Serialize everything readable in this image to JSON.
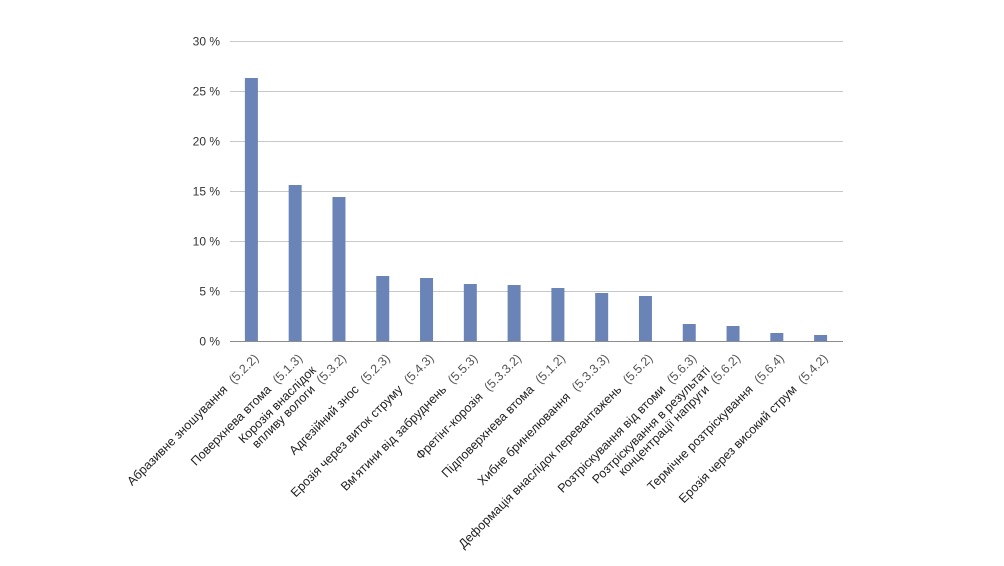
{
  "chart_data": {
    "type": "bar",
    "title": "",
    "xlabel": "",
    "ylabel": "",
    "ylim": [
      0,
      30
    ],
    "yticks": [
      0,
      5,
      10,
      15,
      20,
      25,
      30
    ],
    "ytick_labels": [
      "0 %",
      "5 %",
      "10 %",
      "15 %",
      "20 %",
      "25 %",
      "30 %"
    ],
    "grid": true,
    "bar_color": "#6b84b8",
    "categories": [
      {
        "lines": [
          "Абразивне зношування"
        ],
        "code": "(5.2.2)"
      },
      {
        "lines": [
          "Поверхнева втома"
        ],
        "code": "(5.1.3)"
      },
      {
        "lines": [
          "Корозія внаслідок",
          "впливу вологи"
        ],
        "code": "(5.3.2)"
      },
      {
        "lines": [
          "Адгезійний знос"
        ],
        "code": "(5.2.3)"
      },
      {
        "lines": [
          "Ерозія через виток струму"
        ],
        "code": "(5.4.3)"
      },
      {
        "lines": [
          "Вм'ятини від забруднень"
        ],
        "code": "(5.5.3)"
      },
      {
        "lines": [
          "Фретінг-корозія"
        ],
        "code": "(5.3.3.2)"
      },
      {
        "lines": [
          "Підповерхнева втома"
        ],
        "code": "(5.1.2)"
      },
      {
        "lines": [
          "Хибне бринелювання"
        ],
        "code": "(5.3.3.3)"
      },
      {
        "lines": [
          "Деформація внаслідок перевантажень"
        ],
        "code": "(5.5.2)"
      },
      {
        "lines": [
          "Розтріскування від втоми"
        ],
        "code": "(5.6.3)"
      },
      {
        "lines": [
          "Розтріскування в результаті",
          "концентрації напруги"
        ],
        "code": "(5.6.2)"
      },
      {
        "lines": [
          "Термічне розтріскування"
        ],
        "code": "(5.6.4)"
      },
      {
        "lines": [
          "Ерозія через високий струм"
        ],
        "code": "(5.4.2)"
      }
    ],
    "values": [
      26.3,
      15.6,
      14.4,
      6.5,
      6.3,
      5.7,
      5.6,
      5.3,
      4.8,
      4.5,
      1.7,
      1.5,
      0.8,
      0.6
    ]
  }
}
